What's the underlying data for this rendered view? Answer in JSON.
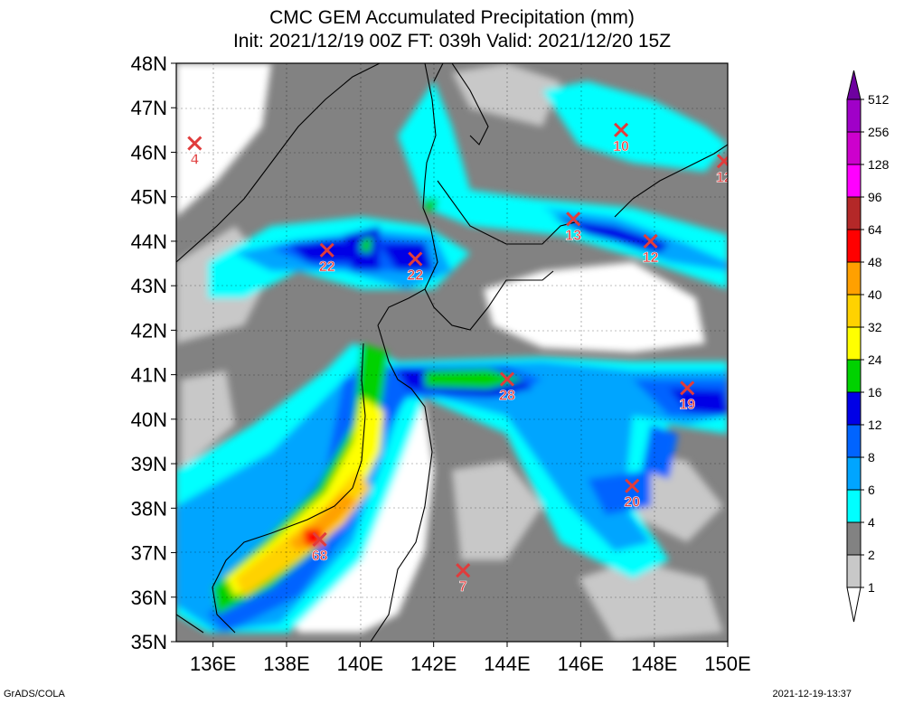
{
  "title": "CMC GEM Accumulated Precipitation (mm)",
  "subtitle": "Init: 2021/12/19 00Z  FT: 039h  Valid: 2021/12/20 15Z",
  "footer_left": "GrADS/COLA",
  "footer_right": "2021-12-19-13:37",
  "map": {
    "lon_range": [
      135,
      150
    ],
    "lat_range": [
      35,
      48
    ],
    "lat_labels": [
      "35N",
      "36N",
      "37N",
      "38N",
      "39N",
      "40N",
      "41N",
      "42N",
      "43N",
      "44N",
      "45N",
      "46N",
      "47N",
      "48N"
    ],
    "lon_labels": [
      "136E",
      "138E",
      "140E",
      "142E",
      "144E",
      "146E",
      "148E",
      "150E"
    ],
    "grid": true
  },
  "colorbar": {
    "levels": [
      "1",
      "2",
      "4",
      "6",
      "8",
      "12",
      "16",
      "24",
      "32",
      "40",
      "48",
      "64",
      "96",
      "128",
      "256",
      "512"
    ],
    "colors": [
      "#ffffff",
      "#c8c8c8",
      "#828282",
      "#00ffff",
      "#00a5ff",
      "#0064ff",
      "#0000e6",
      "#00d200",
      "#ffff00",
      "#ffd200",
      "#ffa000",
      "#ff0000",
      "#b42828",
      "#ff00ff",
      "#cd00cd",
      "#a000c8",
      "#6e00a0"
    ]
  },
  "markers": [
    {
      "lon": 135.5,
      "lat": 46.2,
      "value": "4"
    },
    {
      "lon": 147.1,
      "lat": 46.5,
      "value": "10"
    },
    {
      "lon": 149.9,
      "lat": 45.8,
      "value": "12"
    },
    {
      "lon": 145.8,
      "lat": 44.5,
      "value": "13"
    },
    {
      "lon": 147.9,
      "lat": 44.0,
      "value": "12"
    },
    {
      "lon": 139.1,
      "lat": 43.8,
      "value": "22"
    },
    {
      "lon": 141.5,
      "lat": 43.6,
      "value": "22"
    },
    {
      "lon": 144.0,
      "lat": 40.9,
      "value": "28"
    },
    {
      "lon": 148.9,
      "lat": 40.7,
      "value": "19"
    },
    {
      "lon": 147.4,
      "lat": 38.5,
      "value": "20"
    },
    {
      "lon": 138.9,
      "lat": 37.3,
      "value": "68"
    },
    {
      "lon": 142.8,
      "lat": 36.6,
      "value": "7"
    }
  ]
}
